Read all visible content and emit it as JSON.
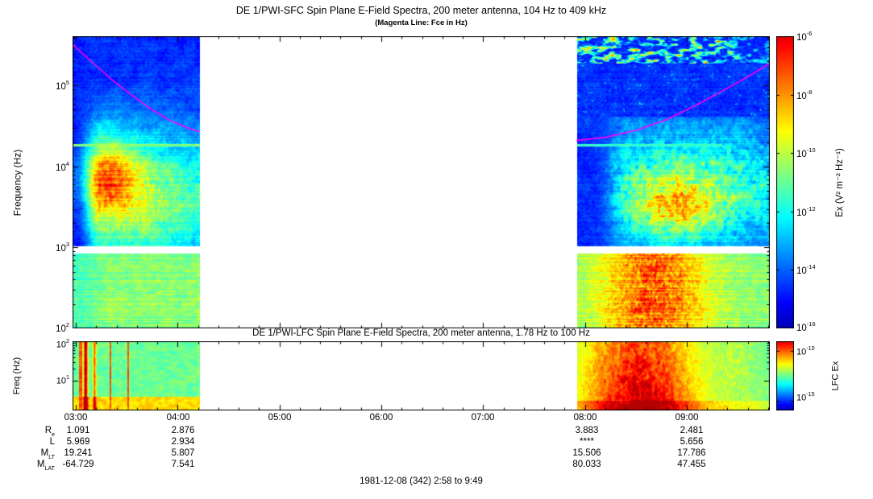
{
  "sfc": {
    "title": "DE 1/PWI-SFC  Spin Plane E-Field Spectra, 200 meter antenna, 104 Hz to 409 kHz",
    "subtitle": "(Magenta Line: Fce in Hz)",
    "ylabel": "Frequency (Hz)",
    "yticks": [
      {
        "b": "10",
        "e": "5"
      },
      {
        "b": "10",
        "e": "4"
      },
      {
        "b": "10",
        "e": "3"
      },
      {
        "b": "10",
        "e": "2"
      }
    ],
    "colorbar": {
      "label": "Ex (V² m⁻² Hz⁻¹)",
      "ticks": [
        {
          "b": "10",
          "e": "-6"
        },
        {
          "b": "10",
          "e": "-8"
        },
        {
          "b": "10",
          "e": "-10"
        },
        {
          "b": "10",
          "e": "-12"
        },
        {
          "b": "10",
          "e": "-14"
        },
        {
          "b": "10",
          "e": "-16"
        }
      ]
    }
  },
  "lfc": {
    "title": "DE 1/PWI-LFC  Spin Plane E-Field Spectra, 200 meter antenna, 1.78 Hz to 100 Hz",
    "ylabel": "Freq (Hz)",
    "yticks": [
      {
        "b": "10",
        "e": "2"
      },
      {
        "b": "10",
        "e": "1"
      }
    ],
    "colorbar": {
      "label": "LFC Ex",
      "ticks": [
        {
          "b": "10",
          "e": "-10"
        },
        {
          "b": "10",
          "e": "-15"
        }
      ]
    }
  },
  "xaxis": {
    "ticks": [
      "03:00",
      "04:00",
      "05:00",
      "06:00",
      "07:00",
      "08:00",
      "09:00"
    ]
  },
  "ephemeris": {
    "rows": [
      {
        "label_main": "R",
        "label_sub": "e",
        "values": [
          "1.091",
          "2.876",
          "3.883",
          "2.481"
        ]
      },
      {
        "label_main": "L",
        "label_sub": "",
        "values": [
          "5.969",
          "2.934",
          "****",
          "5.656"
        ]
      },
      {
        "label_main": "M",
        "label_sub": "LT",
        "values": [
          "19.241",
          "5.807",
          "15.506",
          "17.786"
        ]
      },
      {
        "label_main": "M",
        "label_sub": "LAT",
        "values": [
          "-64.729",
          "7.541",
          "80.033",
          "47.455"
        ]
      }
    ]
  },
  "footer": {
    "date_label": "1981-12-08 (342) 2:58 to 9:49"
  },
  "chart_data": {
    "type": "heatmap",
    "subtype": "time-frequency spectrogram",
    "date_label": "1981-12-08 (342) 2:58 to 9:49",
    "x": {
      "unit": "UT (hours)",
      "range_hours": [
        2.967,
        9.817
      ],
      "ticks_hours": [
        3,
        4,
        5,
        6,
        7,
        8,
        9
      ],
      "tick_labels": [
        "03:00",
        "04:00",
        "05:00",
        "06:00",
        "07:00",
        "08:00",
        "09:00"
      ]
    },
    "data_gap_hours": [
      4.217,
      7.917
    ],
    "panels": [
      {
        "name": "SFC",
        "title": "DE 1/PWI-SFC  Spin Plane E-Field Spectra, 200 meter antenna, 104 Hz to 409 kHz",
        "ylabel": "Frequency (Hz)",
        "yscale": "log",
        "ylim_hz": [
          100,
          409000
        ],
        "stated_range": "104 Hz to 409 kHz",
        "colorbar": {
          "label": "Ex (V² m⁻² Hz⁻¹)",
          "log10_range": [
            -16,
            -6
          ]
        },
        "white_gap_hz": [
          850,
          1050
        ],
        "segments": [
          {
            "start_hour": 2.967,
            "end_hour": 4.217,
            "features": "intense VLF hiss/chorus band 300 Hz - 20 kHz, yellow-green peak near 3:10-3:40 around 3-8 kHz, dark blue above 30 kHz, cyan-green band below 900 Hz"
          },
          {
            "start_hour": 7.917,
            "end_hour": 9.817,
            "features": "patchy cyan auroral kilometric radiation near 200-400 kHz, green turbulent structure 1-20 kHz strongest 8:20-9:40, yellow-orange broadband bursts below 900 Hz near 8:15-9:00"
          }
        ]
      },
      {
        "name": "LFC",
        "title": "DE 1/PWI-LFC  Spin Plane E-Field Spectra, 200 meter antenna, 1.78 Hz to 100 Hz",
        "ylabel": "Freq (Hz)",
        "yscale": "log",
        "ylim_hz": [
          1.78,
          100
        ],
        "colorbar": {
          "label": "LFC Ex",
          "log10_range": [
            -16,
            -9
          ],
          "log10_ticks": [
            -10,
            -15
          ]
        },
        "segments": [
          {
            "start_hour": 2.967,
            "end_hour": 4.217,
            "features": "moderate green broadband noise with red impulsive spikes near 3:05-3:10, orange band at lowest frequencies"
          },
          {
            "start_hour": 7.917,
            "end_hour": 9.817,
            "features": "intense red/orange broadband ELF turbulence 7:55-9:15, fading to green-yellow after 9:15"
          }
        ]
      }
    ],
    "fce_line": {
      "label": "Fce in Hz",
      "color": "#ff00ff",
      "segments": [
        {
          "points_hour_hz": [
            [
              2.967,
              324000
            ],
            [
              3.15,
              200000
            ],
            [
              3.35,
              120000
            ],
            [
              3.55,
              76000
            ],
            [
              3.75,
              50000
            ],
            [
              3.95,
              36000
            ],
            [
              4.1,
              30000
            ],
            [
              4.217,
              27000
            ]
          ]
        },
        {
          "points_hour_hz": [
            [
              7.917,
              21000
            ],
            [
              8.2,
              23000
            ],
            [
              8.5,
              28000
            ],
            [
              8.8,
              38000
            ],
            [
              9.1,
              58000
            ],
            [
              9.4,
              93000
            ],
            [
              9.65,
              140000
            ],
            [
              9.817,
              190000
            ]
          ]
        }
      ]
    },
    "ephemeris_columns_hour": [
      3,
      4,
      8,
      9
    ],
    "ephemeris_rows": [
      {
        "label": "Re",
        "values": [
          1.091,
          2.876,
          3.883,
          2.481
        ]
      },
      {
        "label": "L",
        "values": [
          5.969,
          2.934,
          null,
          5.656
        ],
        "note": "**** shown at 08:00"
      },
      {
        "label": "MLT",
        "values": [
          19.241,
          5.807,
          15.506,
          17.786
        ]
      },
      {
        "label": "MLAT",
        "values": [
          -64.729,
          7.541,
          80.033,
          47.455
        ]
      }
    ]
  }
}
